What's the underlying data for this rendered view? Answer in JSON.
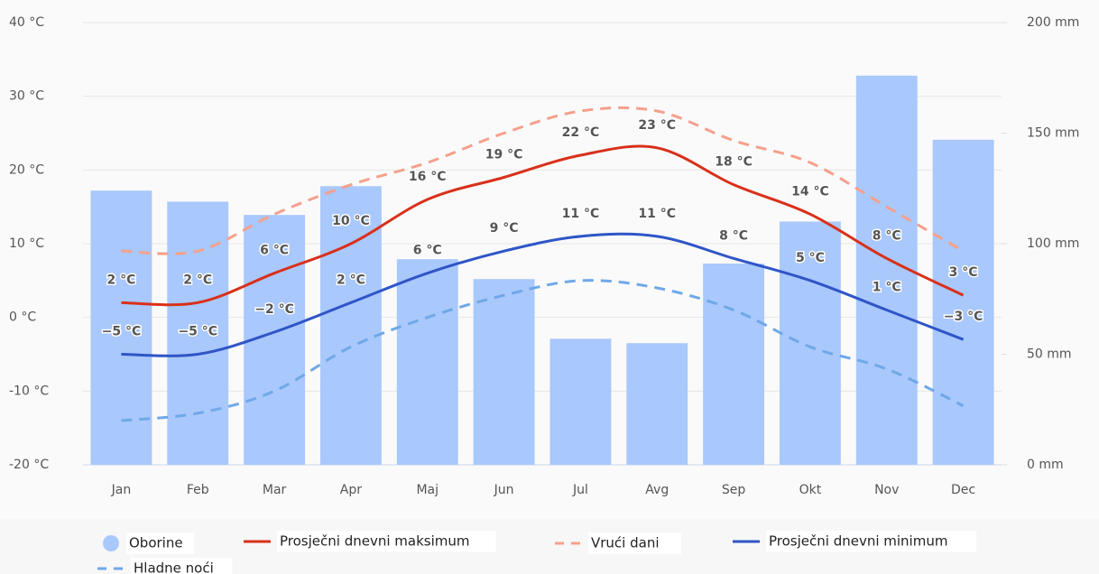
{
  "chart_data": {
    "type": "combo",
    "categories": [
      "Jan",
      "Feb",
      "Mar",
      "Apr",
      "Maj",
      "Jun",
      "Jul",
      "Avg",
      "Sep",
      "Okt",
      "Nov",
      "Dec"
    ],
    "ylim": [
      -20,
      40
    ],
    "yticks": [
      {
        "value": -20,
        "label": "-20 °C"
      },
      {
        "value": -10,
        "label": "-10 °C"
      },
      {
        "value": 0,
        "label": "0 °C"
      },
      {
        "value": 10,
        "label": "10 °C"
      },
      {
        "value": 20,
        "label": "20 °C"
      },
      {
        "value": 30,
        "label": "30 °C"
      },
      {
        "value": 40,
        "label": "40 °C"
      }
    ],
    "y2lim": [
      0,
      200
    ],
    "y2ticks": [
      {
        "value": 0,
        "label": "0 mm"
      },
      {
        "value": 50,
        "label": "50 mm"
      },
      {
        "value": 100,
        "label": "100 mm"
      },
      {
        "value": 150,
        "label": "150 mm"
      },
      {
        "value": 200,
        "label": "200 mm"
      }
    ],
    "grid": true,
    "legend": "bottom",
    "series": [
      {
        "name": "Oborine",
        "type": "bar",
        "axis": "y2",
        "color": "#a9c8fb",
        "values": [
          124,
          119,
          113,
          126,
          93,
          84,
          57,
          55,
          91,
          110,
          176,
          147
        ]
      },
      {
        "name": "Prosječni dnevni maksimum",
        "type": "line",
        "color": "#d9301a",
        "label_color": "#9a2a00",
        "values": [
          2,
          2,
          6,
          10,
          16,
          19,
          22,
          23,
          18,
          14,
          8,
          3
        ],
        "value_labels": [
          "2 °C",
          "2 °C",
          "6 °C",
          "10 °C",
          "16 °C",
          "19 °C",
          "22 °C",
          "23 °C",
          "18 °C",
          "14 °C",
          "8 °C",
          "3 °C"
        ]
      },
      {
        "name": "Vrući dani",
        "type": "line",
        "dashed": true,
        "color": "#f5a08c",
        "values": [
          9,
          9,
          14,
          18,
          21,
          25,
          28,
          28,
          24,
          21,
          15,
          9
        ]
      },
      {
        "name": "Prosječni dnevni minimum",
        "type": "line",
        "color": "#2f55c8",
        "label_color": "#2f4fb8",
        "values": [
          -5,
          -5,
          -2,
          2,
          6,
          9,
          11,
          11,
          8,
          5,
          1,
          -3
        ],
        "value_labels": [
          "−5 °C",
          "−5 °C",
          "−2 °C",
          "2 °C",
          "6 °C",
          "9 °C",
          "11 °C",
          "11 °C",
          "8 °C",
          "5 °C",
          "1 °C",
          "−3 °C"
        ]
      },
      {
        "name": "Hladne noći",
        "type": "line",
        "dashed": true,
        "color": "#6fa8e8",
        "values": [
          -14,
          -13,
          -10,
          -4,
          0,
          3,
          5,
          4,
          1,
          -4,
          -7,
          -12
        ]
      }
    ]
  }
}
